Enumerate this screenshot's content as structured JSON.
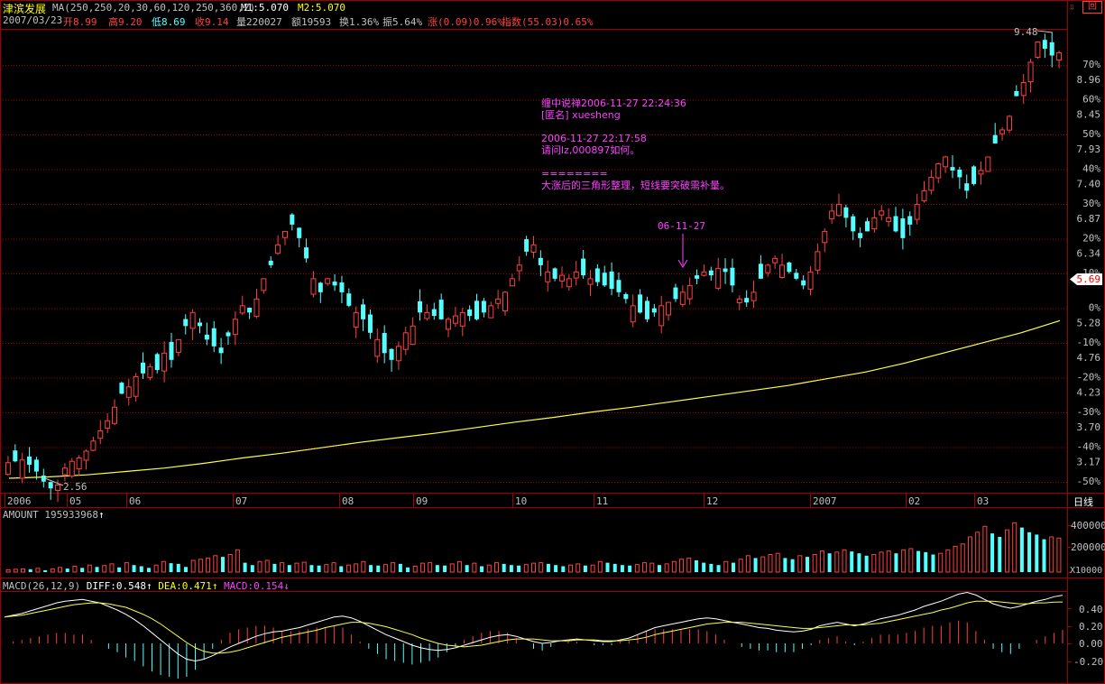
{
  "header": {
    "stock_name": "津滨发展",
    "ma_label": "MA(250,250,20,30,60,120,250,360,2)",
    "m1": "M1:5.070",
    "m2": "M2:5.070",
    "date": "2007/03/23",
    "open": "开8.99",
    "high": "高9.20",
    "low": "低8.69",
    "close": "收9.14",
    "volume": "量220027",
    "amount": "额19593",
    "turnover": "换1.36%",
    "amplitude": "振5.64%",
    "change": "涨(0.09)0.96%",
    "index": "指数(55.03)0.65%"
  },
  "annotation": {
    "line1": "缠中说禅2006-11-27 22:24:36",
    "line2": "[匿名] xuesheng",
    "line3": "2006-11-27 22:17:58",
    "line4": "请问lz,000897如何。",
    "line5": "========",
    "line6": "大涨后的三角形整理，短线要突破需补量。",
    "marker": "06-11-27"
  },
  "price_labels": {
    "max": "9.48",
    "min": "2.56",
    "current": "5.69"
  },
  "right_axis": [
    {
      "pct": "70%",
      "price": "8.96"
    },
    {
      "pct": "60%",
      "price": "8.45"
    },
    {
      "pct": "50%",
      "price": "7.93"
    },
    {
      "pct": "40%",
      "price": "7.40"
    },
    {
      "pct": "30%",
      "price": "6.87"
    },
    {
      "pct": "20%",
      "price": "6.34"
    },
    {
      "pct": "10%",
      "price": ""
    },
    {
      "pct": "0%",
      "price": "5.28"
    },
    {
      "pct": "-10%",
      "price": "4.76"
    },
    {
      "pct": "-20%",
      "price": "4.23"
    },
    {
      "pct": "-30%",
      "price": "3.70"
    },
    {
      "pct": "-40%",
      "price": "3.17"
    },
    {
      "pct": "-50%",
      "price": ""
    }
  ],
  "x_axis": [
    "2006",
    "05",
    "06",
    "07",
    "08",
    "09",
    "10",
    "11",
    "12",
    "2007",
    "02",
    "03"
  ],
  "period_label": "日线",
  "amount_panel": {
    "label": "AMOUNT 195933968",
    "ticks": [
      "400000",
      "200000"
    ],
    "unit": "X10000"
  },
  "macd_panel": {
    "label": "MACD(26,12,9)",
    "diff": "DIFF:0.548",
    "dea": "DEA:0.471",
    "macd": "MACD:0.154",
    "ticks": [
      "0.40",
      "0.20",
      "0.00",
      "-0.20"
    ]
  },
  "colors": {
    "up": "#ff4040",
    "down": "#54ffff",
    "ma": "#ffff40",
    "grid": "#a00000",
    "annotation": "#ff40ff",
    "title": "#ffff00",
    "text": "#c0c0c0"
  },
  "chart_data": {
    "type": "candlestick",
    "price_range": [
      2.56,
      9.48
    ],
    "base_price": 5.28,
    "price_series_close": [
      3.08,
      3.1,
      3.12,
      3.05,
      2.95,
      2.8,
      2.7,
      2.75,
      3.0,
      3.1,
      3.15,
      3.25,
      3.4,
      3.55,
      3.7,
      3.9,
      4.1,
      4.2,
      4.35,
      4.4,
      4.5,
      4.45,
      4.7,
      4.6,
      4.9,
      5.1,
      5.3,
      5.1,
      4.9,
      4.8,
      4.7,
      4.95,
      5.2,
      5.4,
      5.3,
      5.5,
      5.8,
      6.0,
      6.3,
      6.5,
      6.6,
      6.4,
      6.1,
      5.8,
      5.6,
      5.8,
      5.7,
      5.6,
      5.4,
      5.3,
      5.2,
      5.0,
      4.9,
      4.7,
      4.6,
      4.8,
      5.0,
      5.1,
      5.3,
      5.3,
      5.25,
      5.2,
      5.2,
      5.25,
      5.3,
      5.25,
      5.2,
      5.3,
      5.4,
      5.5,
      5.6,
      5.8,
      6.0,
      6.2,
      6.3,
      6.0,
      5.9,
      5.8,
      5.85,
      5.8,
      5.9,
      5.85,
      5.8,
      5.75,
      5.7,
      5.65,
      5.6,
      5.5,
      5.4,
      5.3,
      5.2,
      5.3,
      5.4,
      5.45,
      5.5,
      5.6,
      5.7,
      5.8,
      5.9,
      5.85,
      5.95,
      5.9,
      5.7,
      5.5,
      5.45,
      5.6,
      5.8,
      6.0,
      6.1,
      6.0,
      5.9,
      5.8,
      5.7,
      5.9,
      6.2,
      6.5,
      6.8,
      6.9,
      6.7,
      6.5,
      6.4,
      6.5,
      6.7,
      6.8,
      6.7,
      6.5,
      6.4,
      6.6,
      6.9,
      7.1,
      7.3,
      7.5,
      7.6,
      7.4,
      7.3,
      7.1,
      7.2,
      7.4,
      7.6,
      7.8,
      8.0,
      8.2,
      8.5,
      8.7,
      9.0,
      9.3,
      9.2,
      9.1,
      9.14
    ],
    "ma250": [
      2.85,
      2.87,
      2.9,
      2.95,
      3.0,
      3.07,
      3.15,
      3.22,
      3.3,
      3.38,
      3.45,
      3.52,
      3.6,
      3.68,
      3.75,
      3.83,
      3.9,
      3.98,
      4.06,
      4.14,
      4.22,
      4.32,
      4.42,
      4.55,
      4.7,
      4.85,
      5.0,
      5.18
    ],
    "amount": [
      10,
      12,
      14,
      12,
      16,
      8,
      14,
      20,
      15,
      25,
      18,
      30,
      22,
      28,
      35,
      20,
      40,
      30,
      25,
      18,
      30,
      45,
      38,
      35,
      22,
      50,
      55,
      60,
      70,
      65,
      75,
      95,
      40,
      30,
      45,
      50,
      35,
      40,
      30,
      38,
      42,
      30,
      28,
      32,
      40,
      25,
      30,
      35,
      45,
      30,
      28,
      32,
      40,
      35,
      20,
      25,
      38,
      40,
      30,
      28,
      35,
      45,
      30,
      38,
      25,
      30,
      40,
      35,
      30,
      28,
      32,
      38,
      40,
      35,
      30,
      25,
      30,
      35,
      28,
      30,
      45,
      40,
      35,
      30,
      28,
      32,
      40,
      38,
      30,
      35,
      45,
      55,
      60,
      50,
      40,
      35,
      30,
      45,
      40,
      55,
      70,
      60,
      65,
      75,
      80,
      60,
      55,
      70,
      65,
      75,
      90,
      80,
      85,
      95,
      88,
      80,
      70,
      75,
      85,
      90,
      80,
      95,
      100,
      90,
      85,
      75,
      80,
      95,
      110,
      120,
      150,
      170,
      195,
      165,
      150,
      180,
      210,
      190,
      170,
      160,
      140,
      150,
      145
    ],
    "macd_diff": [
      0.3,
      0.32,
      0.34,
      0.37,
      0.4,
      0.43,
      0.46,
      0.48,
      0.49,
      0.5,
      0.48,
      0.46,
      0.42,
      0.38,
      0.33,
      0.27,
      0.2,
      0.12,
      0.04,
      -0.04,
      -0.12,
      -0.18,
      -0.2,
      -0.18,
      -0.14,
      -0.09,
      -0.04,
      0.0,
      0.04,
      0.08,
      0.11,
      0.13,
      0.14,
      0.16,
      0.18,
      0.21,
      0.24,
      0.27,
      0.3,
      0.31,
      0.29,
      0.25,
      0.2,
      0.15,
      0.1,
      0.06,
      0.02,
      -0.02,
      -0.05,
      -0.07,
      -0.08,
      -0.07,
      -0.05,
      -0.02,
      0.01,
      0.04,
      0.07,
      0.09,
      0.1,
      0.08,
      0.05,
      0.02,
      0.0,
      0.01,
      0.03,
      0.04,
      0.05,
      0.04,
      0.03,
      0.02,
      0.02,
      0.04,
      0.06,
      0.1,
      0.14,
      0.18,
      0.2,
      0.22,
      0.24,
      0.26,
      0.28,
      0.29,
      0.28,
      0.26,
      0.24,
      0.22,
      0.2,
      0.18,
      0.17,
      0.15,
      0.14,
      0.13,
      0.14,
      0.16,
      0.2,
      0.22,
      0.24,
      0.22,
      0.2,
      0.22,
      0.25,
      0.28,
      0.3,
      0.32,
      0.35,
      0.38,
      0.42,
      0.45,
      0.48,
      0.52,
      0.56,
      0.58,
      0.55,
      0.5,
      0.45,
      0.42,
      0.4,
      0.42,
      0.45,
      0.48,
      0.5,
      0.53,
      0.548
    ],
    "macd_dea": [
      0.3,
      0.31,
      0.32,
      0.34,
      0.36,
      0.38,
      0.4,
      0.42,
      0.44,
      0.45,
      0.46,
      0.46,
      0.45,
      0.43,
      0.41,
      0.37,
      0.33,
      0.28,
      0.22,
      0.15,
      0.08,
      0.01,
      -0.05,
      -0.09,
      -0.11,
      -0.11,
      -0.1,
      -0.08,
      -0.05,
      -0.02,
      0.01,
      0.04,
      0.07,
      0.09,
      0.11,
      0.13,
      0.15,
      0.18,
      0.2,
      0.22,
      0.24,
      0.24,
      0.23,
      0.21,
      0.19,
      0.16,
      0.13,
      0.1,
      0.06,
      0.03,
      0.0,
      -0.02,
      -0.03,
      -0.04,
      -0.03,
      -0.02,
      0.0,
      0.02,
      0.04,
      0.05,
      0.05,
      0.05,
      0.04,
      0.03,
      0.03,
      0.03,
      0.04,
      0.04,
      0.04,
      0.03,
      0.03,
      0.03,
      0.04,
      0.05,
      0.07,
      0.1,
      0.12,
      0.14,
      0.16,
      0.18,
      0.2,
      0.22,
      0.23,
      0.24,
      0.24,
      0.24,
      0.23,
      0.22,
      0.21,
      0.2,
      0.19,
      0.18,
      0.17,
      0.17,
      0.18,
      0.19,
      0.2,
      0.21,
      0.21,
      0.21,
      0.22,
      0.23,
      0.25,
      0.27,
      0.29,
      0.31,
      0.33,
      0.35,
      0.38,
      0.4,
      0.43,
      0.46,
      0.48,
      0.48,
      0.48,
      0.47,
      0.46,
      0.45,
      0.45,
      0.46,
      0.46,
      0.47,
      0.471
    ]
  }
}
